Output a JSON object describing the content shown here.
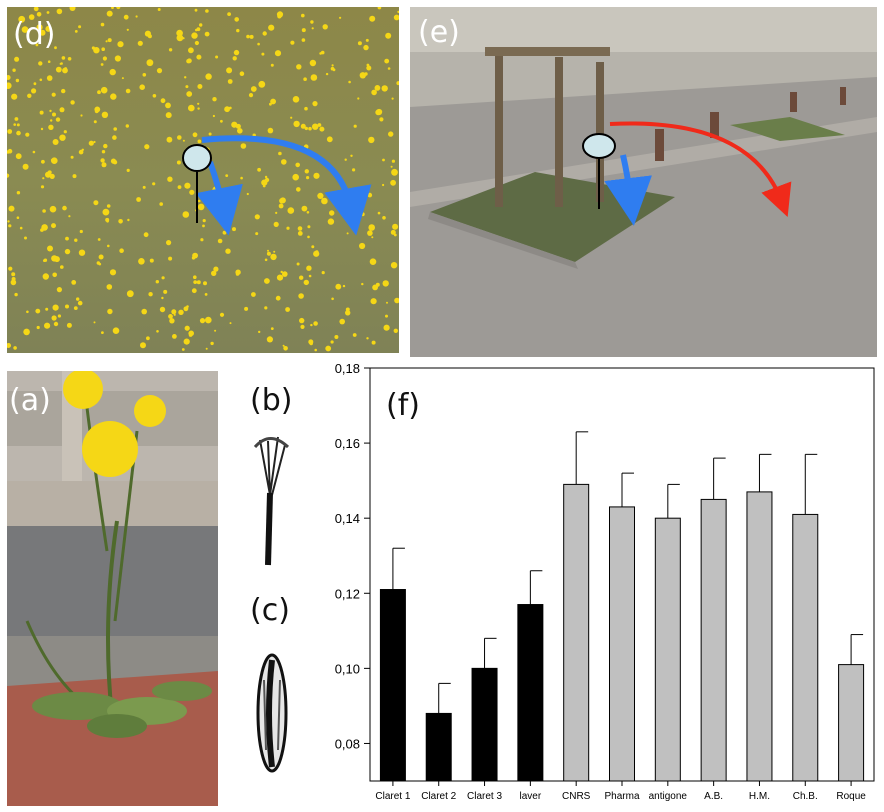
{
  "panels": {
    "a": {
      "label": "(a)"
    },
    "b": {
      "label": "(b)"
    },
    "c": {
      "label": "(c)"
    },
    "d": {
      "label": "(d)"
    },
    "e": {
      "label": "(e)"
    },
    "f": {
      "label": "(f)"
    }
  },
  "colors": {
    "urban_bar": "#000000",
    "field_bar": "#c0c0c0",
    "blue_arrow": "#2f7df0",
    "red_arrow": "#f02a1a",
    "seed_fill": "#cfe7ec",
    "flower_yellow": "#f5d716"
  },
  "chart_data": {
    "type": "bar",
    "categories": [
      "Claret 1",
      "Claret 2",
      "Claret 3",
      "laver",
      "CNRS",
      "Pharma",
      "antigone",
      "A.B.",
      "H.M.",
      "Ch.B.",
      "Roque"
    ],
    "values": [
      0.121,
      0.088,
      0.1,
      0.117,
      0.149,
      0.143,
      0.14,
      0.145,
      0.147,
      0.141,
      0.101
    ],
    "errors": [
      0.011,
      0.008,
      0.008,
      0.009,
      0.014,
      0.009,
      0.009,
      0.011,
      0.01,
      0.016,
      0.008
    ],
    "bar_colors": [
      "#000000",
      "#000000",
      "#000000",
      "#000000",
      "#c0c0c0",
      "#c0c0c0",
      "#c0c0c0",
      "#c0c0c0",
      "#c0c0c0",
      "#c0c0c0",
      "#c0c0c0"
    ],
    "ylim": [
      0.07,
      0.18
    ],
    "yticks": [
      0.08,
      0.1,
      0.12,
      0.14,
      0.16,
      0.18
    ],
    "ytick_labels": [
      "0,08",
      "0,10",
      "0,12",
      "0,14",
      "0,16",
      "0,18"
    ],
    "title": "",
    "xlabel": "",
    "ylabel": "",
    "grid": false
  }
}
